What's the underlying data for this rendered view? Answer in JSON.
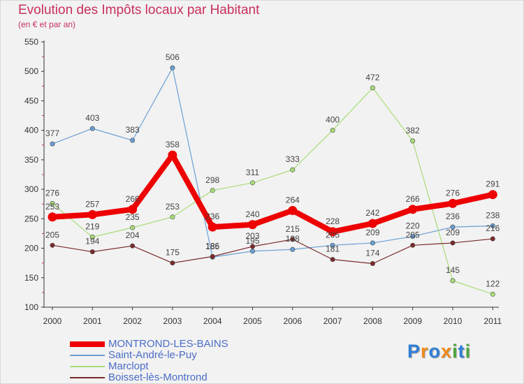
{
  "title": "Evolution des Impôts locaux par Habitant",
  "subtitle": "(en € et par an)",
  "brand": {
    "text": "Proxiti",
    "letters": [
      "P",
      "r",
      "o",
      "x",
      "i",
      "t",
      "i"
    ],
    "colors": [
      "#2f7fd8",
      "#f28a1a",
      "#2f7fd8",
      "#f28a1a",
      "#4aa63a",
      "#2f7fd8",
      "#4aa63a"
    ]
  },
  "chart_data": {
    "type": "line",
    "title": "Evolution des Impôts locaux par Habitant",
    "subtitle": "(en € et par an)",
    "xlabel": "",
    "ylabel": "",
    "ylim": [
      100,
      550
    ],
    "yticks": [
      100,
      150,
      200,
      250,
      300,
      350,
      400,
      450,
      500,
      550
    ],
    "grid": false,
    "categories": [
      "2000",
      "2001",
      "2002",
      "2003",
      "2004",
      "2005",
      "2006",
      "2007",
      "2008",
      "2009",
      "2010",
      "2011"
    ],
    "series": [
      {
        "name": "MONTROND-LES-BAINS",
        "color": "#ee0000",
        "lineWidth": 8,
        "markerRadius": 6.5,
        "values": [
          253,
          257,
          266,
          358,
          236,
          240,
          264,
          228,
          242,
          266,
          276,
          291
        ],
        "labels": [
          "253",
          "257",
          "266",
          "358",
          "236",
          "240",
          "264",
          "228",
          "242",
          "266",
          "276",
          "291"
        ]
      },
      {
        "name": "Saint-André-le-Puy",
        "color": "#6a9fd4",
        "lineWidth": 1.2,
        "markerRadius": 3.2,
        "values": [
          377,
          403,
          383,
          506,
          185,
          195,
          198,
          205,
          209,
          220,
          236,
          238
        ],
        "labels": [
          "377",
          "403",
          "383",
          "506",
          "185",
          "195",
          "198",
          "205",
          "209",
          "220",
          "236",
          "238"
        ]
      },
      {
        "name": "Marclopt",
        "color": "#a8dc78",
        "lineWidth": 1.2,
        "markerRadius": 3.2,
        "values": [
          276,
          219,
          235,
          253,
          298,
          311,
          333,
          400,
          472,
          382,
          145,
          122
        ],
        "labels": [
          "276",
          "219",
          "235",
          "253",
          "298",
          "311",
          "333",
          "400",
          "472",
          "382",
          "145",
          "122"
        ]
      },
      {
        "name": "Boisset-lès-Montrond",
        "color": "#7a2a2a",
        "lineWidth": 1.2,
        "markerRadius": 3.2,
        "values": [
          205,
          194,
          204,
          175,
          186,
          203,
          215,
          181,
          174,
          205,
          209,
          216
        ],
        "labels": [
          "205",
          "194",
          "204",
          "175",
          "186",
          "203",
          "215",
          "181",
          "174",
          "205",
          "209",
          "216"
        ]
      }
    ]
  }
}
